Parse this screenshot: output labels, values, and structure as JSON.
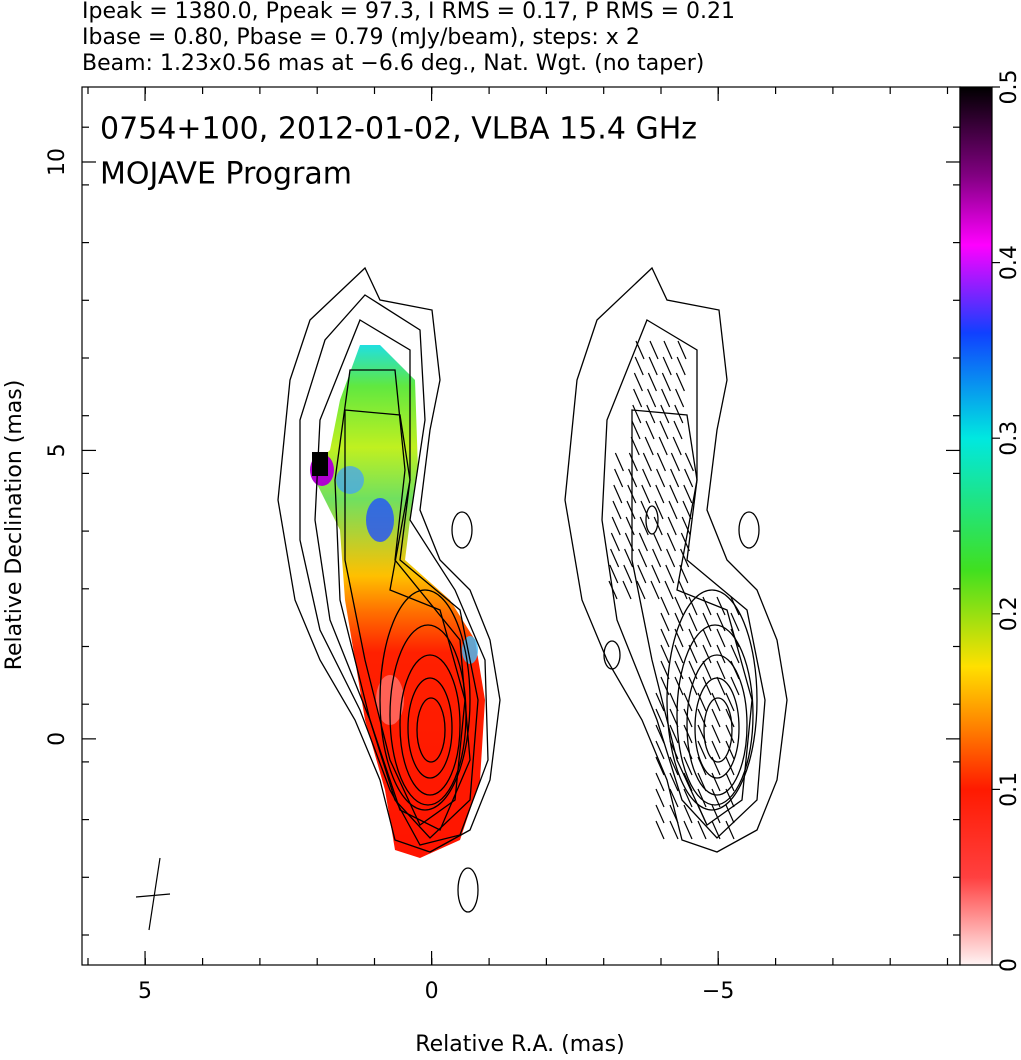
{
  "chart_data": {
    "type": "map",
    "header_lines": [
      "Ipeak = 1380.0, Ppeak = 97.3, I RMS = 0.17, P RMS = 0.21",
      "Ibase = 0.80, Pbase = 0.79 (mJy/beam), steps: x 2",
      "Beam: 1.23x0.56 mas at −6.6 deg., Nat. Wgt. (no taper)"
    ],
    "plot_label": [
      "0754+100, 2012-01-02, VLBA 15.4 GHz",
      "MOJAVE Program"
    ],
    "x_label": "Relative R.A. (mas)",
    "y_label": "Relative Declination (mas)",
    "xlim": [
      6.1,
      -9.22
    ],
    "xticks": [
      5,
      0,
      {
        "value": -5,
        "label": "−5"
      }
    ],
    "ylim": [
      -3.92,
      11.3
    ],
    "yticks": [
      0,
      5,
      10
    ],
    "colorbar": {
      "lim": [
        0,
        0.5
      ],
      "ticks": [
        0,
        0.1,
        0.2,
        0.3,
        0.4,
        0.5
      ]
    }
  }
}
